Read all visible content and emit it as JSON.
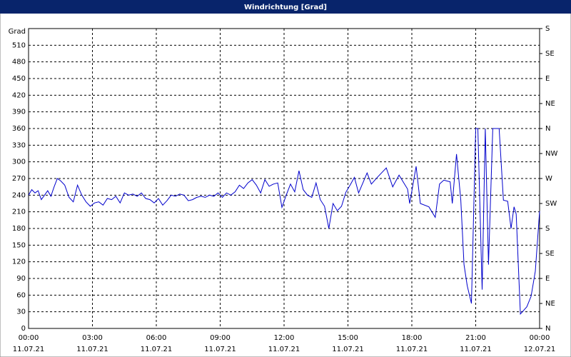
{
  "chart_data": {
    "type": "line",
    "title": "Windrichtung [Grad]",
    "ylabel": "Grad",
    "xlim": [
      0,
      24
    ],
    "xticks": [
      {
        "value": 0,
        "label": "00:00"
      },
      {
        "value": 3,
        "label": "03:00"
      },
      {
        "value": 6,
        "label": "06:00"
      },
      {
        "value": 9,
        "label": "09:00"
      },
      {
        "value": 12,
        "label": "12:00"
      },
      {
        "value": 15,
        "label": "15:00"
      },
      {
        "value": 18,
        "label": "18:00"
      },
      {
        "value": 21,
        "label": "21:00"
      },
      {
        "value": 24,
        "label": "00:00"
      }
    ],
    "xtick_dates": [
      "11.07.21",
      "11.07.21",
      "11.07.21",
      "11.07.21",
      "11.07.21",
      "11.07.21",
      "11.07.21",
      "11.07.21",
      "12.07.21"
    ],
    "ylim": [
      0,
      540
    ],
    "yticks": [
      0,
      30,
      60,
      90,
      120,
      150,
      180,
      210,
      240,
      270,
      300,
      330,
      360,
      390,
      420,
      450,
      480,
      510
    ],
    "y2lim": [
      0,
      540
    ],
    "y2ticks": [
      {
        "value": 0,
        "label": "N"
      },
      {
        "value": 45,
        "label": "NE"
      },
      {
        "value": 90,
        "label": "E"
      },
      {
        "value": 135,
        "label": "SE"
      },
      {
        "value": 180,
        "label": "S"
      },
      {
        "value": 225,
        "label": "SW"
      },
      {
        "value": 270,
        "label": "W"
      },
      {
        "value": 315,
        "label": "NW"
      },
      {
        "value": 360,
        "label": "N"
      },
      {
        "value": 405,
        "label": "NE"
      },
      {
        "value": 450,
        "label": "E"
      },
      {
        "value": 495,
        "label": "SE"
      },
      {
        "value": 540,
        "label": "S"
      }
    ],
    "grid": true,
    "x": [
      0,
      0.15,
      0.3,
      0.45,
      0.6,
      0.75,
      0.9,
      1.05,
      1.2,
      1.35,
      1.5,
      1.7,
      1.9,
      2.1,
      2.3,
      2.5,
      2.7,
      2.9,
      3.1,
      3.3,
      3.5,
      3.7,
      3.9,
      4.1,
      4.3,
      4.5,
      4.7,
      4.9,
      5.1,
      5.3,
      5.5,
      5.7,
      5.9,
      6.1,
      6.3,
      6.5,
      6.7,
      6.9,
      7.1,
      7.3,
      7.5,
      7.7,
      7.9,
      8.1,
      8.3,
      8.5,
      8.7,
      8.9,
      9.1,
      9.3,
      9.5,
      9.7,
      9.9,
      10.1,
      10.3,
      10.5,
      10.7,
      10.9,
      11.1,
      11.3,
      11.5,
      11.7,
      11.9,
      12.1,
      12.3,
      12.5,
      12.7,
      12.9,
      13.1,
      13.3,
      13.5,
      13.7,
      13.9,
      14.1,
      14.3,
      14.5,
      14.7,
      14.9,
      15.1,
      15.3,
      15.5,
      15.7,
      15.9,
      16.1,
      16.4,
      16.8,
      17.1,
      17.4,
      17.8,
      17.9,
      18.2,
      18.4,
      18.8,
      19.1,
      19.3,
      19.5,
      19.8,
      19.9,
      20.1,
      20.3,
      20.45,
      20.6,
      20.8,
      21.0,
      21.1,
      21.3,
      21.45,
      21.6,
      21.8,
      22.1,
      22.3,
      22.5,
      22.66,
      22.8,
      22.9,
      23.1,
      23.4,
      23.6,
      23.8,
      24
    ],
    "series": [
      {
        "color": "#0000cc",
        "values": [
          240,
          250,
          244,
          248,
          232,
          240,
          248,
          238,
          255,
          270,
          266,
          258,
          236,
          228,
          258,
          240,
          228,
          220,
          226,
          228,
          222,
          234,
          232,
          238,
          226,
          244,
          240,
          242,
          238,
          244,
          234,
          232,
          226,
          234,
          222,
          230,
          240,
          238,
          242,
          240,
          230,
          232,
          236,
          238,
          236,
          240,
          238,
          244,
          236,
          244,
          240,
          246,
          258,
          252,
          262,
          268,
          258,
          244,
          268,
          256,
          260,
          262,
          218,
          240,
          260,
          246,
          284,
          250,
          240,
          236,
          262,
          232,
          220,
          180,
          225,
          212,
          220,
          245,
          258,
          272,
          244,
          262,
          280,
          260,
          273,
          289,
          255,
          276,
          251,
          225,
          292,
          225,
          219,
          200,
          260,
          267,
          264,
          225,
          314,
          231,
          115,
          77,
          45,
          360,
          360,
          70,
          360,
          115,
          360,
          360,
          231,
          229,
          180,
          219,
          206,
          26,
          39,
          58,
          103,
          211
        ]
      }
    ]
  }
}
